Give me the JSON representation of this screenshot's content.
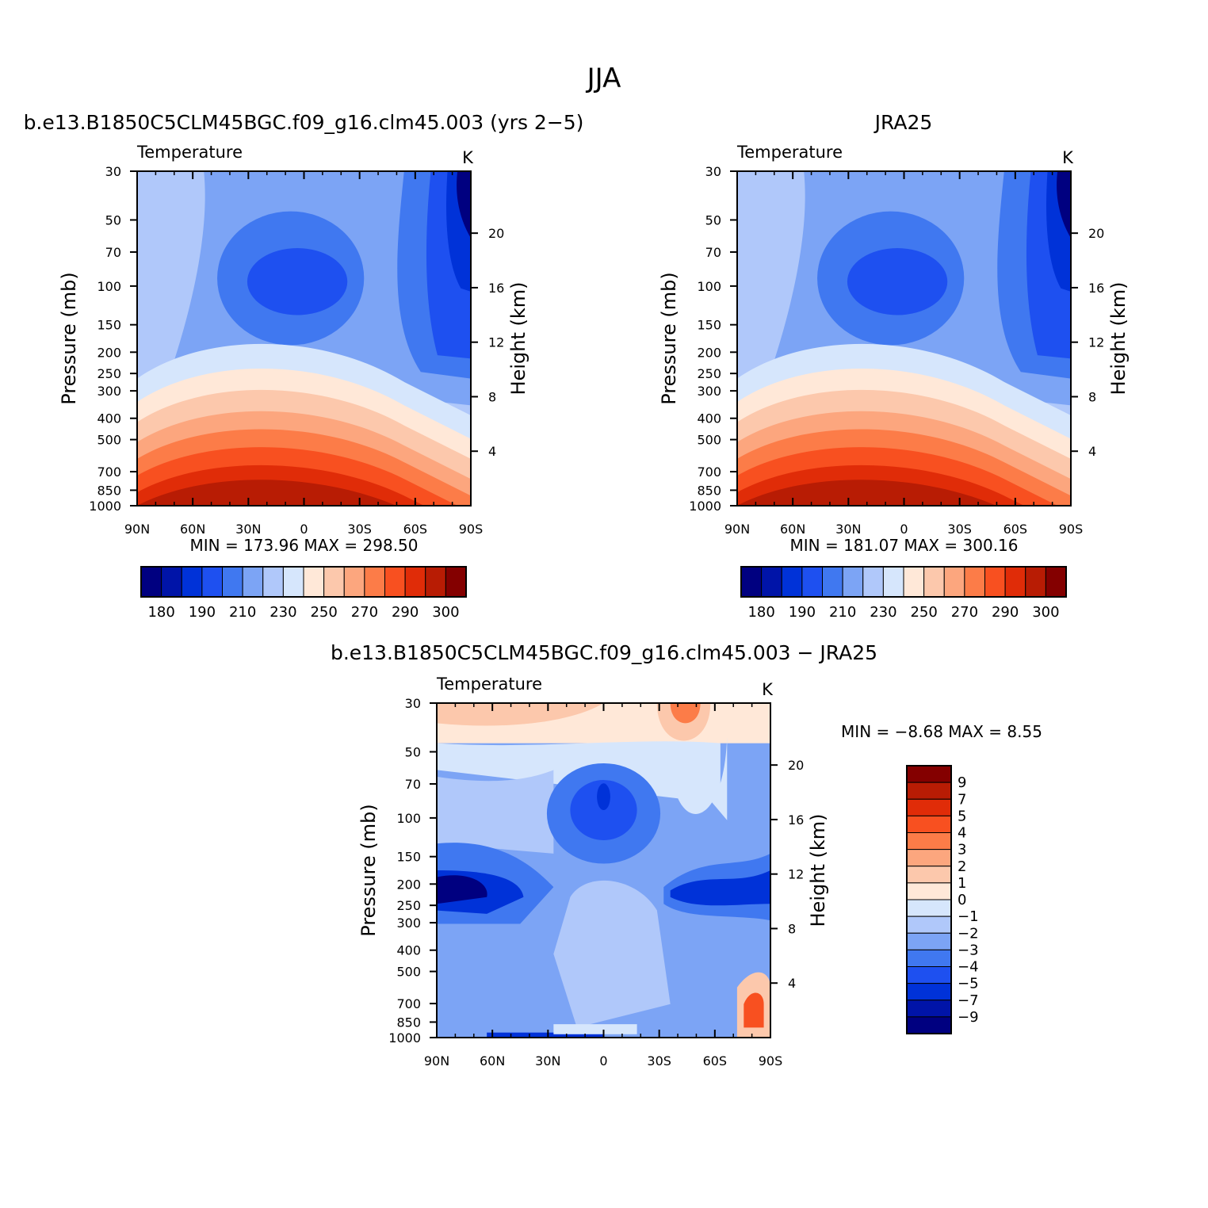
{
  "title": "JJA",
  "chart_data": [
    {
      "type": "heatmap",
      "title": "b.e13.B1850C5CLM45BGC.f09_g16.clm45.003 (yrs 2−5)",
      "subtitle_left": "Temperature",
      "subtitle_right": "K",
      "xlabel": "",
      "ylabel": "Pressure (mb)",
      "ylabel_right": "Height (km)",
      "x_ticks": [
        "90N",
        "60N",
        "30N",
        "0",
        "30S",
        "60S",
        "90S"
      ],
      "y_ticks": [
        "30",
        "50",
        "70",
        "100",
        "150",
        "200",
        "250",
        "300",
        "400",
        "500",
        "700",
        "850",
        "1000"
      ],
      "y_right_ticks": [
        "20",
        "16",
        "12",
        "8",
        "4"
      ],
      "stats": "MIN = 173.96   MAX = 298.50",
      "colorbar_labels": [
        "180",
        "190",
        "210",
        "230",
        "250",
        "270",
        "290",
        "300"
      ],
      "ylim": [
        1000,
        30
      ],
      "yscale": "log",
      "grid": false
    },
    {
      "type": "heatmap",
      "title": "JRA25",
      "subtitle_left": "Temperature",
      "subtitle_right": "K",
      "xlabel": "",
      "ylabel": "Pressure (mb)",
      "ylabel_right": "Height (km)",
      "x_ticks": [
        "90N",
        "60N",
        "30N",
        "0",
        "30S",
        "60S",
        "90S"
      ],
      "y_ticks": [
        "30",
        "50",
        "70",
        "100",
        "150",
        "200",
        "250",
        "300",
        "400",
        "500",
        "700",
        "850",
        "1000"
      ],
      "y_right_ticks": [
        "20",
        "16",
        "12",
        "8",
        "4"
      ],
      "stats": "MIN = 181.07   MAX = 300.16",
      "colorbar_labels": [
        "180",
        "190",
        "210",
        "230",
        "250",
        "270",
        "290",
        "300"
      ],
      "ylim": [
        1000,
        30
      ],
      "yscale": "log",
      "grid": false
    },
    {
      "type": "heatmap",
      "title": "b.e13.B1850C5CLM45BGC.f09_g16.clm45.003 − JRA25",
      "subtitle_left": "Temperature",
      "subtitle_right": "K",
      "xlabel": "",
      "ylabel": "Pressure (mb)",
      "ylabel_right": "Height (km)",
      "x_ticks": [
        "90N",
        "60N",
        "30N",
        "0",
        "30S",
        "60S",
        "90S"
      ],
      "y_ticks": [
        "30",
        "50",
        "70",
        "100",
        "150",
        "200",
        "250",
        "300",
        "400",
        "500",
        "700",
        "850",
        "1000"
      ],
      "y_right_ticks": [
        "20",
        "16",
        "12",
        "8",
        "4"
      ],
      "stats": "MIN =   −8.68   MAX =     8.55",
      "colorbar_labels": [
        "9",
        "7",
        "5",
        "4",
        "3",
        "2",
        "1",
        "0",
        "−1",
        "−2",
        "−3",
        "−4",
        "−5",
        "−7",
        "−9"
      ],
      "ylim": [
        1000,
        30
      ],
      "yscale": "log",
      "grid": false
    }
  ],
  "colors": {
    "abs_scale": [
      "#000080",
      "#0014a8",
      "#0032d8",
      "#1e50f0",
      "#4078f0",
      "#7ca4f5",
      "#b0c8fa",
      "#d6e6fc",
      "#ffe8d8",
      "#fcc8ac",
      "#fca67e",
      "#fc7c48",
      "#f85020",
      "#e02c08",
      "#b81c04",
      "#840000"
    ],
    "diff_scale": [
      "#840000",
      "#b81c04",
      "#e02c08",
      "#f85020",
      "#fc7c48",
      "#fca67e",
      "#fcc8ac",
      "#ffe8d8",
      "#d6e6fc",
      "#b0c8fa",
      "#7ca4f5",
      "#4078f0",
      "#1e50f0",
      "#0032d8",
      "#0014a8",
      "#000080"
    ]
  }
}
